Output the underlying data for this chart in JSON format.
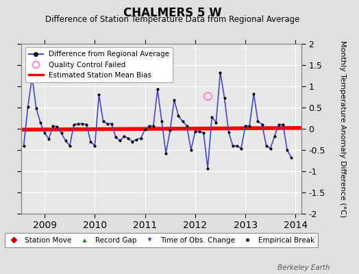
{
  "title": "CHALMERS 5 W",
  "subtitle": "Difference of Station Temperature Data from Regional Average",
  "ylabel": "Monthly Temperature Anomaly Difference (°C)",
  "xlim": [
    2008.54,
    2014.12
  ],
  "ylim": [
    -2.0,
    2.0
  ],
  "yticks": [
    -2.0,
    -1.5,
    -1.0,
    -0.5,
    0.0,
    0.5,
    1.0,
    1.5,
    2.0
  ],
  "ytick_labels": [
    "-2",
    "-1.5",
    "-1",
    "-0.5",
    "0",
    "0.5",
    "1",
    "1.5",
    "2"
  ],
  "xticks": [
    2009,
    2010,
    2011,
    2012,
    2013,
    2014
  ],
  "bias_start": 2008.54,
  "bias_end": 2014.12,
  "bias_y1": -0.02,
  "bias_y2": 0.02,
  "bias_color": "#ff0000",
  "line_color": "#4444cc",
  "marker_color": "#000000",
  "qc_fail_x": [
    2012.25
  ],
  "qc_fail_y": [
    0.78
  ],
  "bg_color": "#e0e0e0",
  "plot_bg": "#e8e8e8",
  "grid_color": "#ffffff",
  "watermark": "Berkeley Earth",
  "monthly_x": [
    2008.583,
    2008.667,
    2008.75,
    2008.833,
    2008.917,
    2009.0,
    2009.083,
    2009.167,
    2009.25,
    2009.333,
    2009.417,
    2009.5,
    2009.583,
    2009.667,
    2009.75,
    2009.833,
    2009.917,
    2010.0,
    2010.083,
    2010.167,
    2010.25,
    2010.333,
    2010.417,
    2010.5,
    2010.583,
    2010.667,
    2010.75,
    2010.833,
    2010.917,
    2011.0,
    2011.083,
    2011.167,
    2011.25,
    2011.333,
    2011.417,
    2011.5,
    2011.583,
    2011.667,
    2011.75,
    2011.833,
    2011.917,
    2012.0,
    2012.083,
    2012.167,
    2012.25,
    2012.333,
    2012.417,
    2012.5,
    2012.583,
    2012.667,
    2012.75,
    2012.833,
    2012.917,
    2013.0,
    2013.083,
    2013.167,
    2013.25,
    2013.333,
    2013.417,
    2013.5,
    2013.583,
    2013.667,
    2013.75,
    2013.833,
    2013.917
  ],
  "monthly_y": [
    -0.4,
    0.52,
    1.22,
    0.48,
    0.14,
    -0.1,
    -0.24,
    0.07,
    0.05,
    -0.1,
    -0.28,
    -0.4,
    0.1,
    0.12,
    0.12,
    0.1,
    -0.3,
    -0.4,
    0.8,
    0.18,
    0.12,
    0.12,
    -0.2,
    -0.28,
    -0.18,
    -0.22,
    -0.3,
    -0.25,
    -0.22,
    -0.02,
    0.07,
    0.07,
    0.93,
    0.18,
    -0.58,
    -0.04,
    0.68,
    0.3,
    0.17,
    0.07,
    -0.5,
    -0.06,
    -0.06,
    -0.1,
    -0.93,
    0.28,
    0.15,
    1.33,
    0.73,
    -0.08,
    -0.4,
    -0.4,
    -0.46,
    0.07,
    0.07,
    0.83,
    0.18,
    0.1,
    -0.4,
    -0.46,
    -0.17,
    0.1,
    0.1,
    -0.5,
    -0.68
  ]
}
